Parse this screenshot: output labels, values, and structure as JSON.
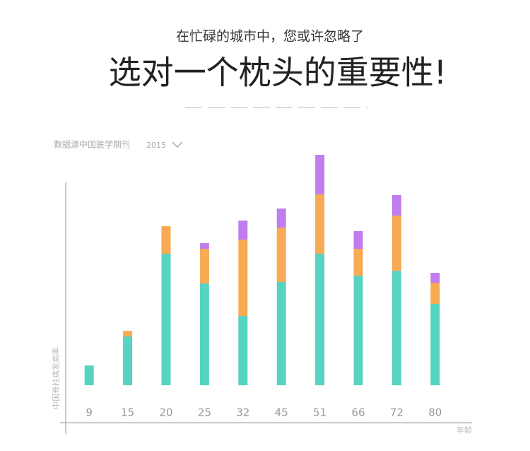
{
  "chart_data": {
    "type": "stacked_bar",
    "subtitle": "在忙碌的城市中，您或许忽略了",
    "title": "选对一个枕头的重要性!",
    "source": "数据源中国医学期刊",
    "year": "2015",
    "y_label": "中国脊柱病发病率",
    "x_label": "年龄",
    "categories": [
      "9",
      "15",
      "20",
      "25",
      "32",
      "45",
      "51",
      "66",
      "72",
      "80"
    ],
    "series": [
      {
        "color": "#56d3c1",
        "values": [
          28,
          69,
          186,
          144,
          98,
          146,
          186,
          155,
          162,
          115
        ]
      },
      {
        "color": "#f9aa55",
        "values": [
          0,
          8,
          39,
          49,
          108,
          77,
          84,
          38,
          78,
          30
        ]
      },
      {
        "color": "#c07df0",
        "values": [
          0,
          0,
          0,
          8,
          27,
          27,
          56,
          25,
          29,
          14
        ]
      }
    ],
    "ylim": [
      0,
      340
    ]
  }
}
